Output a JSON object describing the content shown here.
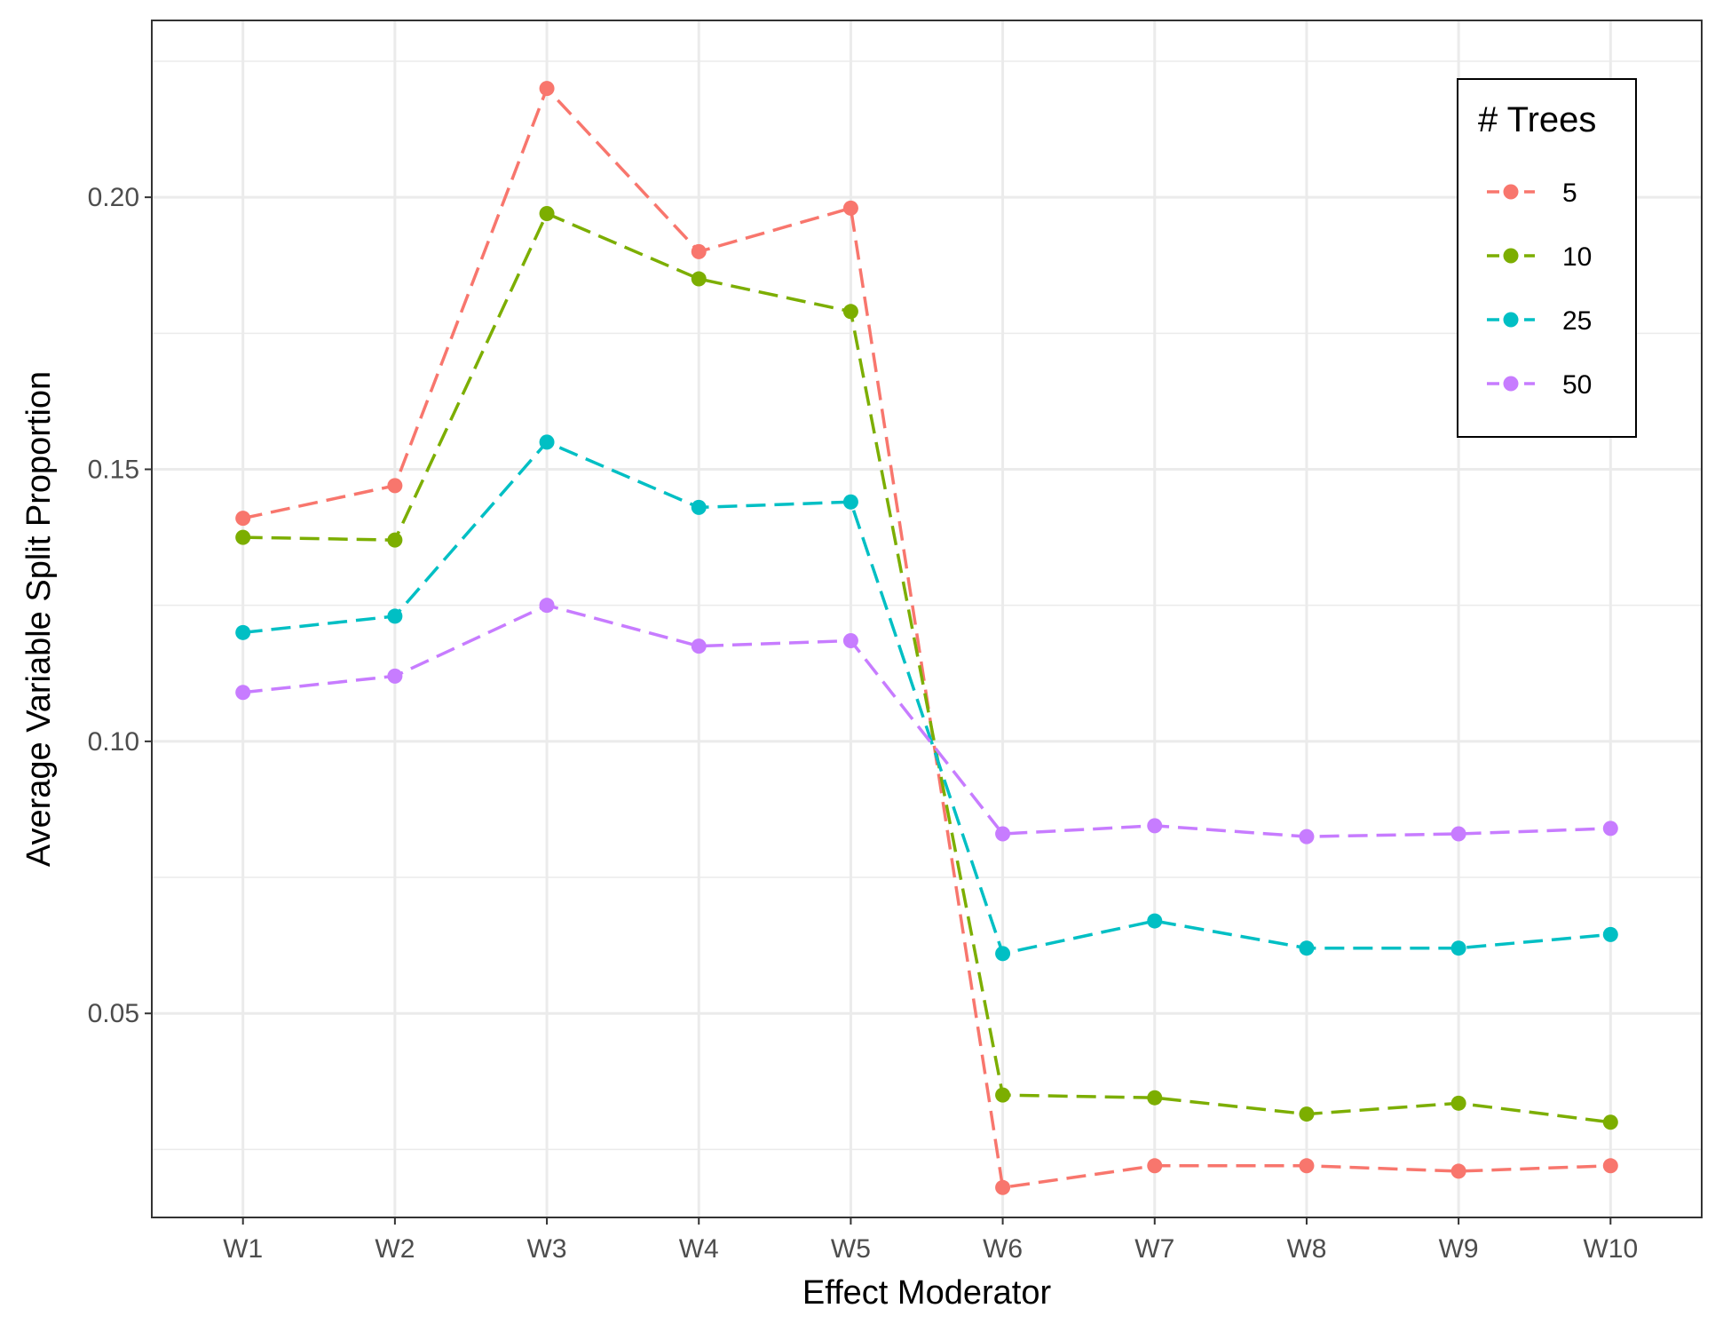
{
  "chart_data": {
    "type": "line",
    "title": "",
    "xlabel": "Effect Moderator",
    "ylabel": "Average Variable Split Proportion",
    "categories": [
      "W1",
      "W2",
      "W3",
      "W4",
      "W5",
      "W6",
      "W7",
      "W8",
      "W9",
      "W10"
    ],
    "ylim": [
      0.0125,
      0.2325
    ],
    "yticks": [
      0.05,
      0.1,
      0.15,
      0.2
    ],
    "ytick_labels": [
      "0.05",
      "0.10",
      "0.15",
      "0.20"
    ],
    "grid": true,
    "line_style": "dashed",
    "legend": {
      "title": "# Trees",
      "position": "top-right"
    },
    "series": [
      {
        "name": "5",
        "color": "#F8766D",
        "values": [
          0.141,
          0.147,
          0.22,
          0.19,
          0.198,
          0.018,
          0.022,
          0.022,
          0.021,
          0.022
        ]
      },
      {
        "name": "10",
        "color": "#7CAE00",
        "values": [
          0.1375,
          0.137,
          0.197,
          0.185,
          0.179,
          0.035,
          0.0345,
          0.0315,
          0.0335,
          0.03
        ]
      },
      {
        "name": "25",
        "color": "#00BFC4",
        "values": [
          0.12,
          0.123,
          0.155,
          0.143,
          0.144,
          0.061,
          0.067,
          0.062,
          0.062,
          0.0645
        ]
      },
      {
        "name": "50",
        "color": "#C77CFF",
        "values": [
          0.109,
          0.112,
          0.125,
          0.1175,
          0.1185,
          0.083,
          0.0845,
          0.0825,
          0.083,
          0.084
        ]
      }
    ]
  }
}
